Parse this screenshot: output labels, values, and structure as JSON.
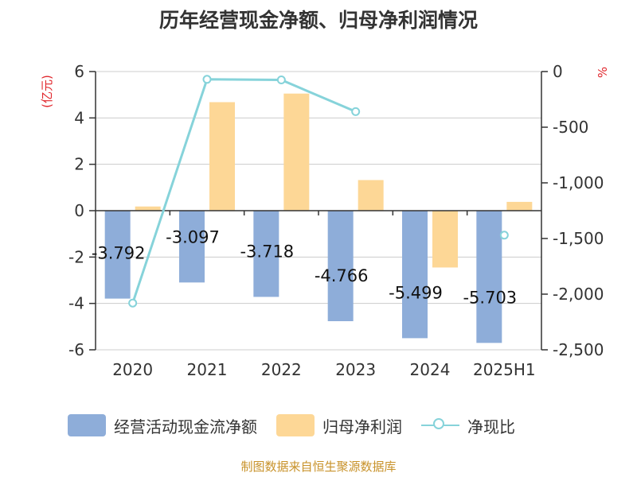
{
  "title": "历年经营现金净额、归母净利润情况",
  "source": "制图数据来自恒生聚源数据库",
  "colors": {
    "cash": "#8eadd9",
    "profit": "#fdd796",
    "ratio": "#86d3da",
    "axis_label_red": "#e0252b",
    "grid": "#cccccc",
    "text": "#333333"
  },
  "chart_data": {
    "type": "bar",
    "title": "历年经营现金净额、归母净利润情况",
    "categories": [
      "2020",
      "2021",
      "2022",
      "2023",
      "2024",
      "2025H1"
    ],
    "y_left": {
      "label": "(亿元)",
      "ylim": [
        -6,
        6
      ],
      "ticks": [
        6,
        4,
        2,
        0,
        -2,
        -4,
        -6
      ],
      "tick_labels": [
        "6",
        "4",
        "2",
        "0",
        "-2",
        "-4",
        "-6"
      ]
    },
    "y_right": {
      "label": "%",
      "ylim": [
        -2500,
        0
      ],
      "ticks": [
        0,
        -500,
        -1000,
        -1500,
        -2000,
        -2500
      ],
      "tick_labels": [
        "0",
        "-500",
        "-1,000",
        "-1,500",
        "-2,000",
        "-2,500"
      ]
    },
    "series": [
      {
        "name": "经营活动现金流净额",
        "kind": "bar",
        "axis": "left",
        "values": [
          -3.792,
          -3.097,
          -3.718,
          -4.766,
          -5.499,
          -5.703
        ],
        "data_labels": [
          "-3.792",
          "-3.097",
          "-3.718",
          "-4.766",
          "-5.499",
          "-5.703"
        ]
      },
      {
        "name": "归母净利润",
        "kind": "bar",
        "axis": "left",
        "values": [
          0.18,
          4.68,
          5.05,
          1.32,
          -2.45,
          0.38
        ]
      },
      {
        "name": "净现比",
        "kind": "line",
        "axis": "right",
        "values": [
          -2080,
          -70,
          -75,
          -360,
          null,
          -1470
        ]
      }
    ],
    "grid": true,
    "legend_position": "bottom"
  }
}
